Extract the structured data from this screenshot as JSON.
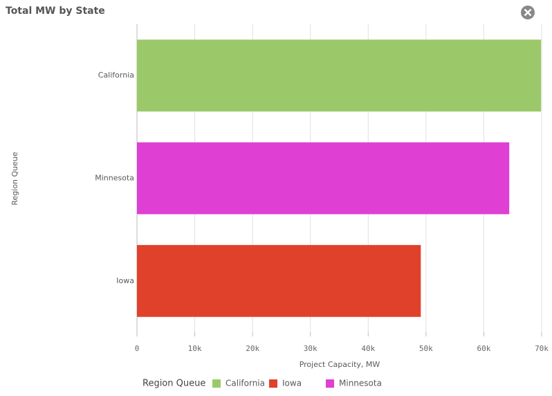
{
  "chart_data": {
    "type": "bar",
    "orientation": "horizontal",
    "title": "Total MW by State",
    "categories": [
      "California",
      "Minnesota",
      "Iowa"
    ],
    "values": [
      69900,
      64400,
      49100
    ],
    "colors": [
      "#9bc96a",
      "#e03fd4",
      "#e0412b"
    ],
    "xlim": [
      0,
      70000
    ],
    "xticks": [
      0,
      {
        "value": 10000,
        "label": "10k"
      },
      {
        "value": 20000,
        "label": "20k"
      },
      {
        "value": 30000,
        "label": "30k"
      },
      {
        "value": 40000,
        "label": "40k"
      },
      {
        "value": 50000,
        "label": "50k"
      },
      {
        "value": 60000,
        "label": "60k"
      },
      {
        "value": 70000,
        "label": "70k"
      }
    ],
    "xlabel": "Project Capacity, MW",
    "ylabel": "Region Queue",
    "grid": true,
    "legend": {
      "title": "Region Queue",
      "position": "bottom",
      "items": [
        {
          "name": "California",
          "color": "#9bc96a"
        },
        {
          "name": "Iowa",
          "color": "#e0412b"
        },
        {
          "name": "Minnesota",
          "color": "#e03fd4"
        }
      ]
    }
  }
}
